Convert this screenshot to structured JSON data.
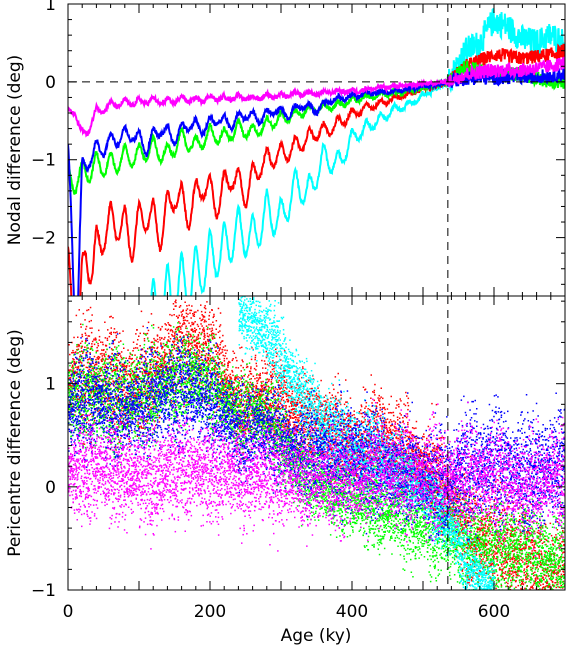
{
  "chart_data": [
    {
      "type": "line",
      "panel": "top",
      "ylabel": "Nodal difference (deg)",
      "xlim": [
        0,
        700
      ],
      "ylim": [
        -2.75,
        1.0
      ],
      "yticks": [
        1,
        0,
        -1,
        -2
      ],
      "ytick_labels": [
        "1",
        "0",
        "−1",
        "−2"
      ],
      "reference_lines": {
        "horizontal_y": 0,
        "vertical_x": 535,
        "style": "dashed"
      },
      "series": [
        {
          "color": "#ff00ff",
          "x": [
            0,
            10,
            20,
            40,
            60,
            80,
            100,
            120,
            140,
            160,
            180,
            200,
            220,
            240,
            260,
            280,
            300,
            320,
            340,
            360,
            380,
            400,
            420,
            440,
            460,
            480,
            500,
            520,
            535,
            560,
            600,
            640,
            680,
            700
          ],
          "y": [
            -0.35,
            -0.3,
            -0.62,
            -0.32,
            -0.25,
            -0.23,
            -0.22,
            -0.2,
            -0.22,
            -0.18,
            -0.2,
            -0.17,
            -0.18,
            -0.16,
            -0.18,
            -0.15,
            -0.15,
            -0.13,
            -0.13,
            -0.12,
            -0.1,
            -0.1,
            -0.08,
            -0.06,
            -0.05,
            -0.04,
            -0.02,
            -0.01,
            0.0,
            0.1,
            0.15,
            0.15,
            0.2,
            0.25
          ]
        },
        {
          "color": "#0000ff",
          "x": [
            0,
            5,
            12,
            20,
            30,
            50,
            70,
            90,
            110,
            130,
            150,
            170,
            190,
            210,
            230,
            250,
            270,
            290,
            310,
            330,
            350,
            370,
            400,
            430,
            460,
            490,
            520,
            535,
            560,
            600,
            640,
            680,
            700
          ],
          "y": [
            -0.8,
            -1.5,
            -2.75,
            -1.0,
            -0.8,
            -0.7,
            -0.6,
            -0.55,
            -0.7,
            -0.5,
            -0.6,
            -0.45,
            -0.5,
            -0.4,
            -0.45,
            -0.35,
            -0.4,
            -0.3,
            -0.35,
            -0.25,
            -0.3,
            -0.2,
            -0.15,
            -0.12,
            -0.1,
            -0.06,
            -0.03,
            0.0,
            0.05,
            0.05,
            0.06,
            0.08,
            0.1
          ]
        },
        {
          "color": "#00ff00",
          "x": [
            0,
            20,
            40,
            60,
            80,
            100,
            120,
            140,
            160,
            180,
            200,
            220,
            240,
            260,
            280,
            300,
            320,
            340,
            360,
            380,
            400,
            430,
            460,
            490,
            520,
            535,
            560,
            600,
            640,
            680,
            700
          ],
          "y": [
            -1.1,
            -1.0,
            -0.9,
            -0.9,
            -0.8,
            -0.8,
            -0.7,
            -0.8,
            -0.6,
            -0.7,
            -0.55,
            -0.6,
            -0.5,
            -0.55,
            -0.45,
            -0.4,
            -0.35,
            -0.3,
            -0.28,
            -0.25,
            -0.2,
            -0.15,
            -0.12,
            -0.08,
            -0.03,
            0.0,
            0.2,
            0.1,
            0.1,
            0.0,
            0.0
          ]
        },
        {
          "color": "#ff0000",
          "x": [
            0,
            15,
            25,
            35,
            50,
            70,
            90,
            110,
            130,
            150,
            170,
            190,
            210,
            230,
            250,
            270,
            290,
            310,
            330,
            350,
            370,
            400,
            430,
            460,
            490,
            520,
            535,
            560,
            600,
            640,
            680,
            700
          ],
          "y": [
            -2.1,
            -2.75,
            -1.8,
            -2.0,
            -1.6,
            -1.5,
            -1.7,
            -1.4,
            -1.6,
            -1.2,
            -1.4,
            -1.1,
            -1.3,
            -1.0,
            -1.2,
            -0.9,
            -0.8,
            -0.75,
            -0.65,
            -0.55,
            -0.5,
            -0.35,
            -0.25,
            -0.18,
            -0.1,
            -0.04,
            0.0,
            0.2,
            0.35,
            0.3,
            0.35,
            0.4
          ]
        },
        {
          "color": "#00ffff",
          "x": [
            100,
            130,
            160,
            180,
            200,
            220,
            240,
            260,
            280,
            300,
            320,
            340,
            360,
            380,
            400,
            420,
            440,
            460,
            480,
            500,
            520,
            535,
            560,
            580,
            600,
            620,
            640,
            660,
            680,
            700
          ],
          "y": [
            -2.75,
            -2.4,
            -2.2,
            -2.1,
            -1.9,
            -1.8,
            -1.6,
            -1.7,
            -1.4,
            -1.5,
            -1.1,
            -1.2,
            -0.8,
            -0.9,
            -0.6,
            -0.5,
            -0.4,
            -0.3,
            -0.25,
            -0.15,
            -0.07,
            0.0,
            0.4,
            0.5,
            0.8,
            0.7,
            0.55,
            0.5,
            0.6,
            0.5
          ]
        }
      ]
    },
    {
      "type": "scatter",
      "panel": "bottom",
      "xlabel": "Age (ky)",
      "ylabel": "Pericentre difference (deg)",
      "xlim": [
        0,
        700
      ],
      "ylim": [
        -1.0,
        1.85
      ],
      "xticks": [
        0,
        200,
        400,
        600
      ],
      "xtick_labels": [
        "0",
        "200",
        "400",
        "600"
      ],
      "yticks": [
        1,
        0,
        -1
      ],
      "ytick_labels": [
        "1",
        "0",
        "−1"
      ],
      "reference_lines": {
        "vertical_x": 535,
        "style": "dashed"
      },
      "series": [
        {
          "color": "#ff0000",
          "x": [
            0,
            40,
            80,
            120,
            160,
            200,
            240,
            280,
            320,
            360,
            400,
            440,
            480,
            520,
            560,
            600,
            640,
            680,
            700
          ],
          "center": [
            1.0,
            1.1,
            0.95,
            1.1,
            1.4,
            1.3,
            0.8,
            0.9,
            0.7,
            0.6,
            0.4,
            0.5,
            0.3,
            0.1,
            -0.4,
            -0.6,
            -0.7,
            -0.9,
            -0.8
          ],
          "spread": [
            0.45,
            0.5,
            0.5,
            0.45,
            0.45,
            0.45,
            0.4,
            0.4,
            0.4,
            0.4,
            0.4,
            0.4,
            0.4,
            0.4,
            0.45,
            0.5,
            0.5,
            0.5,
            0.5
          ]
        },
        {
          "color": "#00ff00",
          "x": [
            0,
            40,
            80,
            120,
            160,
            200,
            240,
            280,
            320,
            360,
            400,
            440,
            480,
            520,
            560,
            600,
            640,
            680,
            700
          ],
          "center": [
            0.9,
            0.9,
            0.85,
            0.95,
            1.1,
            1.0,
            0.7,
            0.7,
            0.2,
            0.0,
            -0.1,
            -0.2,
            -0.3,
            -0.4,
            -0.5,
            -0.6,
            -0.6,
            -0.7,
            -0.7
          ],
          "spread": [
            0.4,
            0.45,
            0.45,
            0.45,
            0.4,
            0.4,
            0.35,
            0.35,
            0.35,
            0.35,
            0.35,
            0.35,
            0.4,
            0.4,
            0.4,
            0.4,
            0.4,
            0.4,
            0.4
          ]
        },
        {
          "color": "#00ffff",
          "x": [
            240,
            260,
            280,
            300,
            320,
            340,
            360,
            380,
            400,
            420,
            440,
            460,
            480,
            500,
            520,
            540,
            560,
            580,
            600
          ],
          "center": [
            1.7,
            1.6,
            1.5,
            1.2,
            1.0,
            0.8,
            0.6,
            0.5,
            0.4,
            0.35,
            0.3,
            0.2,
            0.1,
            0.0,
            -0.2,
            -0.4,
            -0.7,
            -0.9,
            -1.0
          ],
          "spread": [
            0.25,
            0.3,
            0.3,
            0.35,
            0.35,
            0.35,
            0.35,
            0.35,
            0.35,
            0.35,
            0.35,
            0.3,
            0.3,
            0.3,
            0.3,
            0.3,
            0.3,
            0.25,
            0.2
          ]
        },
        {
          "color": "#0000ff",
          "x": [
            0,
            40,
            80,
            120,
            160,
            200,
            240,
            280,
            320,
            360,
            400,
            440,
            480,
            520,
            560,
            600,
            640,
            680,
            700
          ],
          "center": [
            0.8,
            0.85,
            0.75,
            0.85,
            0.95,
            0.85,
            0.55,
            0.55,
            0.35,
            0.3,
            0.3,
            0.2,
            0.15,
            0.05,
            0.15,
            0.25,
            0.15,
            0.2,
            0.2
          ],
          "spread": [
            0.45,
            0.45,
            0.45,
            0.45,
            0.45,
            0.45,
            0.4,
            0.4,
            0.4,
            0.45,
            0.45,
            0.45,
            0.45,
            0.45,
            0.5,
            0.5,
            0.5,
            0.5,
            0.5
          ]
        },
        {
          "color": "#ff00ff",
          "x": [
            0,
            40,
            80,
            120,
            160,
            200,
            240,
            280,
            320,
            360,
            400,
            440,
            480,
            520,
            560,
            600,
            640,
            680,
            700
          ],
          "center": [
            0.15,
            0.2,
            0.15,
            0.1,
            0.2,
            0.15,
            0.15,
            0.15,
            0.1,
            0.1,
            0.1,
            0.15,
            0.1,
            0.1,
            0.1,
            0.1,
            0.0,
            0.1,
            0.1
          ],
          "spread": [
            0.35,
            0.45,
            0.45,
            0.45,
            0.45,
            0.45,
            0.45,
            0.45,
            0.45,
            0.45,
            0.45,
            0.45,
            0.45,
            0.45,
            0.45,
            0.45,
            0.45,
            0.45,
            0.45
          ]
        }
      ]
    }
  ]
}
